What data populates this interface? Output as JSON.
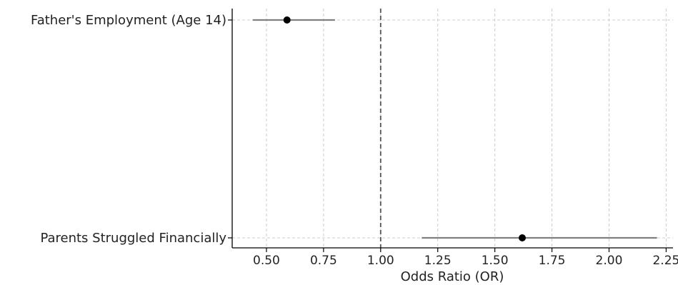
{
  "chart_data": {
    "type": "forest",
    "title": "",
    "xlabel": "Odds Ratio (OR)",
    "ylabel": "",
    "xlim": [
      0.35,
      2.28
    ],
    "xticks": [
      0.5,
      0.75,
      1.0,
      1.25,
      1.5,
      1.75,
      2.0,
      2.25
    ],
    "xtick_labels": [
      "0.50",
      "0.75",
      "1.00",
      "1.25",
      "1.50",
      "1.75",
      "2.00",
      "2.25"
    ],
    "reference_line": 1.0,
    "grid": true,
    "categories": [
      "Father's Employment (Age 14)",
      "Parents Struggled Financially"
    ],
    "points": [
      {
        "label": "Father's Employment (Age 14)",
        "or": 0.59,
        "ci_low": 0.44,
        "ci_high": 0.8
      },
      {
        "label": "Parents Struggled Financially",
        "or": 1.62,
        "ci_low": 1.18,
        "ci_high": 2.21
      }
    ],
    "colors": {
      "point": "#000000",
      "ci_line": "#808080",
      "reference": "#555555",
      "grid": "#cccccc",
      "axis": "#000000"
    }
  }
}
